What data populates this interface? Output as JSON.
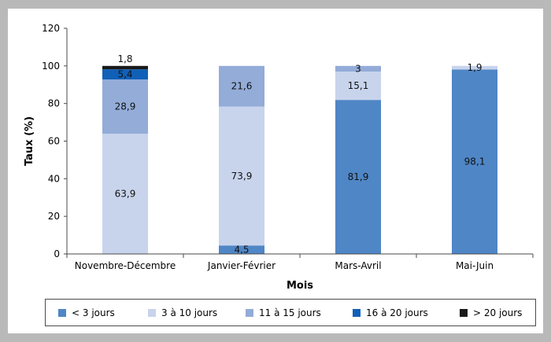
{
  "chart_data": {
    "type": "bar",
    "stacked": true,
    "categories": [
      "Novembre-Décembre",
      "Janvier-Février",
      "Mars-Avril",
      "Mai-Juin"
    ],
    "xlabel": "Mois",
    "ylabel": "Taux (%)",
    "ylim": [
      0,
      120
    ],
    "yticks": [
      0,
      20,
      40,
      60,
      80,
      100,
      120
    ],
    "grid": false,
    "legend_position": "bottom",
    "series": [
      {
        "name": "< 3 jours",
        "color": "#4f86c6",
        "values": [
          0,
          4.5,
          81.9,
          98.1
        ],
        "labels": [
          "",
          "4,5",
          "81,9",
          "98,1"
        ]
      },
      {
        "name": "3 à 10 jours",
        "color": "#c8d4ec",
        "values": [
          63.9,
          73.9,
          15.1,
          1.9
        ],
        "labels": [
          "63,9",
          "73,9",
          "15,1",
          "1,9"
        ]
      },
      {
        "name": "11 à 15 jours",
        "color": "#93acd8",
        "values": [
          28.9,
          21.6,
          3,
          0
        ],
        "labels": [
          "28,9",
          "21,6",
          "3",
          ""
        ]
      },
      {
        "name": "16 à 20 jours",
        "color": "#1060b8",
        "values": [
          5.4,
          0,
          0,
          0
        ],
        "labels": [
          "5,4",
          "",
          "",
          ""
        ]
      },
      {
        "name": "> 20 jours",
        "color": "#1a1a1a",
        "values": [
          1.8,
          0,
          0,
          0
        ],
        "labels": [
          "1,8",
          "",
          "",
          ""
        ]
      }
    ]
  }
}
